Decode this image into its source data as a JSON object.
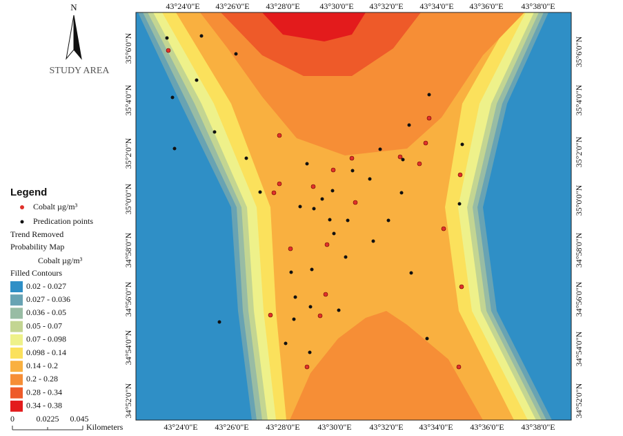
{
  "north_arrow": "N",
  "title": "STUDY AREA",
  "top_axis_labels": [
    "43°24'0\"E",
    "43°26'0\"E",
    "43°28'0\"E",
    "43°30'0\"E",
    "43°32'0\"E",
    "43°34'0\"E",
    "43°36'0\"E",
    "43°38'0\"E"
  ],
  "bottom_axis_labels": [
    "43°24'0\"E",
    "43°26'0\"E",
    "43°28'0\"E",
    "43°30'0\"E",
    "43°32'0\"E",
    "43°34'0\"E",
    "43°36'0\"E",
    "43°38'0\"E"
  ],
  "left_axis_labels": [
    "35°6'0\"N",
    "35°4'0\"N",
    "35°2'0\"N",
    "35°0'0\"N",
    "34°58'0\"N",
    "34°56'0\"N",
    "34°54'0\"N",
    "34°52'0\"N"
  ],
  "right_axis_labels": [
    "35°6'0\"N",
    "35°4'0\"N",
    "35°2'0\"N",
    "35°0'0\"N",
    "34°58'0\"N",
    "34°56'0\"N",
    "34°54'0\"N",
    "34°52'0\"N"
  ],
  "legend": {
    "title": "Legend",
    "symbols": [
      {
        "label": "Cobalt µg/m³",
        "color": "#e0312a"
      },
      {
        "label": "Predication points",
        "color": "#111111"
      }
    ],
    "map_title": [
      "Trend Removed",
      "Probability Map"
    ],
    "map_unit": "Cobalt µg/m³",
    "contours_title": "Filled Contours",
    "classes": [
      {
        "label": "0.02 - 0.027",
        "color": "#2f8fc6"
      },
      {
        "label": "0.027 - 0.036",
        "color": "#68a3b3"
      },
      {
        "label": "0.036 - 0.05",
        "color": "#98bca4"
      },
      {
        "label": "0.05 - 0.07",
        "color": "#c3d592"
      },
      {
        "label": "0.07 - 0.098",
        "color": "#eef18a"
      },
      {
        "label": "0.098 - 0.14",
        "color": "#fbe15c"
      },
      {
        "label": "0.14 - 0.2",
        "color": "#f9b040"
      },
      {
        "label": "0.2 - 0.28",
        "color": "#f68e36"
      },
      {
        "label": "0.28 - 0.34",
        "color": "#ee5a29"
      },
      {
        "label": "0.34 - 0.38",
        "color": "#e31b1c"
      }
    ]
  },
  "scale_bar": {
    "ticks": [
      "0",
      "0.0225",
      "0.045"
    ],
    "unit": "Kilometers"
  }
}
